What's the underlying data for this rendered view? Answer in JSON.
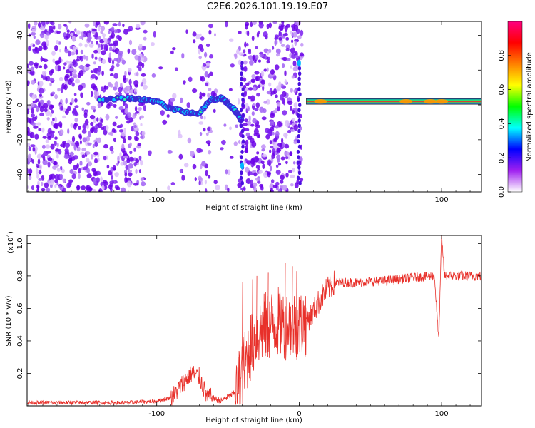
{
  "figure_title": "C2E6.2026.101.19.19.E07",
  "chart_data": [
    {
      "type": "heatmap",
      "title": "C2E6.2026.101.19.19.E07",
      "xlabel": "Height of straight line (km)",
      "ylabel": "Frequency (Hz)",
      "xlim": [
        -191,
        128
      ],
      "ylim": [
        -50,
        48
      ],
      "x_ticks": [
        -100,
        0,
        100
      ],
      "x_tick_labels": [
        "-100",
        "",
        "100"
      ],
      "y_ticks": [
        -40,
        -20,
        0,
        20,
        40
      ],
      "y_tick_labels": [
        "-40",
        "-20",
        "0",
        "20",
        "40"
      ],
      "colorbar": {
        "label": "Normalized spectral amplitude",
        "range": [
          0,
          1
        ],
        "ticks": [
          0.0,
          0.2,
          0.4,
          0.6,
          0.8
        ],
        "tick_labels": [
          "0.0",
          "0.2",
          "0.4",
          "0.6",
          "0.8"
        ],
        "colors": [
          "#ffffff",
          "#a020f0",
          "#0000ff",
          "#00ffff",
          "#00ff00",
          "#ffff00",
          "#ff8000",
          "#ff0000",
          "#ff0080"
        ]
      },
      "features": {
        "noise_region_x": [
          -191,
          2
        ],
        "ridge": [
          [
            -140,
            3
          ],
          [
            -120,
            4
          ],
          [
            -110,
            3
          ],
          [
            -100,
            2
          ],
          [
            -90,
            -2
          ],
          [
            -80,
            -4
          ],
          [
            -70,
            -5
          ],
          [
            -62,
            3
          ],
          [
            -55,
            4
          ],
          [
            -50,
            1
          ],
          [
            -45,
            -3
          ],
          [
            -40,
            -10
          ]
        ],
        "vertical_streak_x": [
          -40,
          0
        ],
        "carrier_line": {
          "x_range": [
            5,
            128
          ],
          "frequency": 2,
          "peaks_x": [
            15,
            75,
            92,
            100
          ]
        }
      }
    },
    {
      "type": "line",
      "xlabel": "Height of straight line (km)",
      "ylabel": "SNR (10 * v/v)",
      "y_multiplier": "(x10",
      "y_multiplier_exp": "4",
      "y_multiplier_end": ")",
      "xlim": [
        -191,
        128
      ],
      "ylim": [
        0,
        1.05
      ],
      "x_ticks": [
        -100,
        0,
        100
      ],
      "x_tick_labels": [
        "-100",
        "0",
        "100"
      ],
      "y_ticks": [
        0.2,
        0.4,
        0.6,
        0.8,
        1.0
      ],
      "y_tick_labels": [
        "0.2",
        "0.4",
        "0.6",
        "0.8",
        "1.0"
      ],
      "color": "#e8302a",
      "series": [
        {
          "name": "SNR",
          "points": [
            [
              -191,
              0.02
            ],
            [
              -150,
              0.02
            ],
            [
              -120,
              0.02
            ],
            [
              -100,
              0.03
            ],
            [
              -90,
              0.05
            ],
            [
              -85,
              0.1
            ],
            [
              -80,
              0.16
            ],
            [
              -75,
              0.2
            ],
            [
              -70,
              0.18
            ],
            [
              -65,
              0.06
            ],
            [
              -55,
              0.03
            ],
            [
              -45,
              0.08
            ],
            [
              -40,
              0.2
            ],
            [
              -35,
              0.35
            ],
            [
              -30,
              0.45
            ],
            [
              -25,
              0.48
            ],
            [
              -20,
              0.5
            ],
            [
              -15,
              0.52
            ],
            [
              -10,
              0.5
            ],
            [
              -5,
              0.5
            ],
            [
              0,
              0.5
            ],
            [
              5,
              0.52
            ],
            [
              10,
              0.58
            ],
            [
              15,
              0.66
            ],
            [
              20,
              0.72
            ],
            [
              25,
              0.76
            ],
            [
              30,
              0.76
            ],
            [
              40,
              0.76
            ],
            [
              60,
              0.77
            ],
            [
              80,
              0.79
            ],
            [
              95,
              0.8
            ],
            [
              98,
              0.4
            ],
            [
              100,
              1.05
            ],
            [
              102,
              0.8
            ],
            [
              110,
              0.8
            ],
            [
              128,
              0.8
            ]
          ],
          "spikes": [
            [
              -40,
              0.76
            ],
            [
              -33,
              0.78
            ],
            [
              -30,
              0.8
            ],
            [
              -22,
              0.82
            ],
            [
              -10,
              0.88
            ],
            [
              -5,
              0.86
            ],
            [
              -2,
              0.83
            ]
          ]
        }
      ]
    }
  ]
}
